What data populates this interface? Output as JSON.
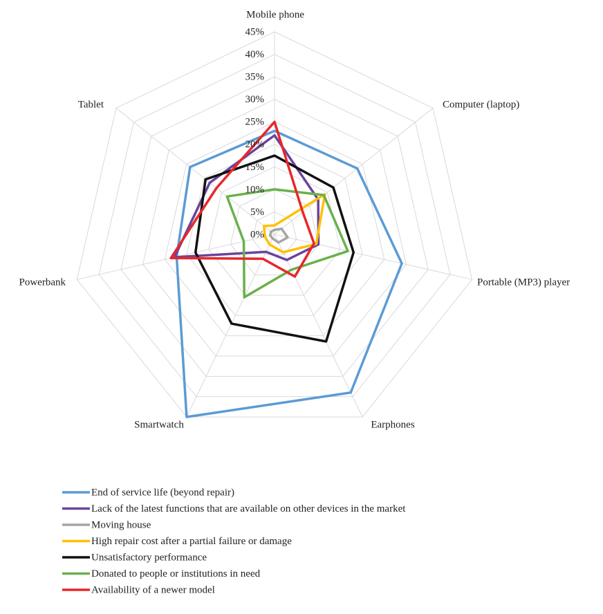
{
  "chart_data": {
    "type": "radar",
    "categories": [
      "Mobile phone",
      "Computer (laptop)",
      "Portable (MP3) player",
      "Earphones",
      "Smartwatch",
      "Powerbank",
      "Tablet"
    ],
    "ylim": [
      0,
      45
    ],
    "yticks": [
      {
        "value": 0,
        "label": "0%"
      },
      {
        "value": 5,
        "label": "5%"
      },
      {
        "value": 10,
        "label": "10%"
      },
      {
        "value": 15,
        "label": "15%"
      },
      {
        "value": 20,
        "label": "20%"
      },
      {
        "value": 25,
        "label": "25%"
      },
      {
        "value": 30,
        "label": "30%"
      },
      {
        "value": 35,
        "label": "35%"
      },
      {
        "value": 40,
        "label": "40%"
      },
      {
        "value": 45,
        "label": "45%"
      }
    ],
    "grid": true,
    "series": [
      {
        "name": "End of service life (beyond repair)",
        "color": "#5b9bd5",
        "values": [
          23,
          23.5,
          29,
          39,
          45,
          22.3,
          24
        ]
      },
      {
        "name": "Lack of the latest functions that are available on other devices in the market",
        "color": "#6a449c",
        "values": [
          22,
          12.4,
          10,
          6.3,
          4.3,
          22.8,
          18.4
        ]
      },
      {
        "name": "Moving house",
        "color": "#a5a5a5",
        "values": [
          1,
          2,
          3,
          2,
          1,
          1,
          1
        ]
      },
      {
        "name": "High repair cost after a partial failure or damage",
        "color": "#ffc000",
        "values": [
          2,
          14.3,
          9.5,
          4.4,
          2.5,
          2.2,
          3
        ]
      },
      {
        "name": "Unsatisfactory performance",
        "color": "#111111",
        "values": [
          17.5,
          16.7,
          18,
          26.4,
          22,
          18,
          19.6
        ]
      },
      {
        "name": "Donated to people or institutions in need",
        "color": "#6ab04c",
        "values": [
          10,
          14,
          16.7,
          8.7,
          15.5,
          7,
          13.5
        ]
      },
      {
        "name": "Availability of a newer model",
        "color": "#e8262b",
        "values": [
          25,
          8,
          9,
          10.4,
          6,
          23.6,
          16.5
        ]
      }
    ]
  }
}
